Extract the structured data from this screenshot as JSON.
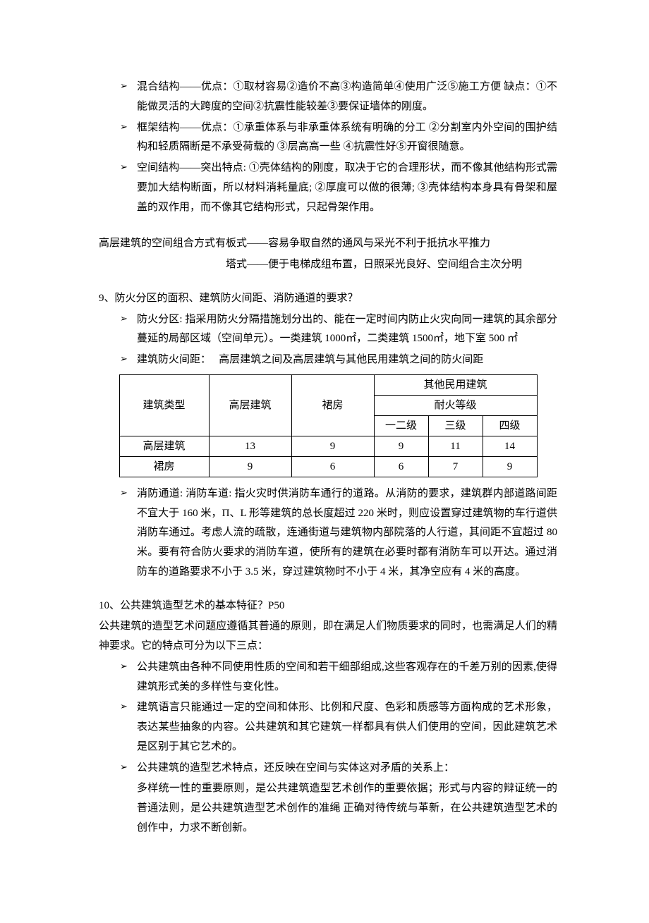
{
  "bullets_top": [
    "混合结构——优点：①取材容易②造价不高③构造简单④使用广泛⑤施工方便 缺点：①不能做灵活的大跨度的空间②抗震性能较差③要保证墙体的刚度。",
    "框架结构——优点：①承重体系与非承重体系统有明确的分工 ②分割室内外空间的围护结构和轻质隔断是不承受荷载的 ③层高高一些 ④抗震性好⑤开窗很随意。",
    "空间结构——突出特点: ①壳体结构的刚度，取决于它的合理形状，而不像其他结构形式需要加大结构断面，所以材料消耗量底; ②厚度可以做的很薄; ③壳体结构本身具有骨架和屋盖的双作用，而不像其它结构形式，只起骨架作用。"
  ],
  "highrise": {
    "line1": "高层建筑的空间组合方式有板式——容易争取自然的通风与采光不利于抵抗水平推力",
    "line2": "塔式——便于电梯成组布置，日照采光良好、空间组合主次分明"
  },
  "q9": {
    "title": "9、防火分区的面积、建筑防火间距、消防通道的要求？",
    "bullet1": "防火分区: 指采用防火分隔措施划分出的、能在一定时间内防止火灾向同一建筑的其余部分蔓延的局部区域（空间单元）。一类建筑 1000㎡，二类建筑 1500㎡，地下室 500 ㎡",
    "bullet2_lead": "建筑防火间距：",
    "bullet2_rest": "高层建筑之间及高层建筑与其他民用建筑之间的防火间距",
    "bullet3": "消防通道: 消防车道: 指火灾时供消防车通行的道路。从消防的要求，建筑群内部道路间距不宜大于 160 米，Π、L 形等建筑的总长度超过 220 米时，则应设置穿过建筑物的车行道供消防车通过。考虑人流的疏散，连通街道与建筑物内部院落的人行道，其间距不宜超过 80 米。要有符合防火要求的消防车道，使所有的建筑在必要时都有消防车可以开达。通过消防车的道路要求不小于 3.5 米，穿过建筑物时不小于 4 米，其净空应有 4 米的高度。"
  },
  "table": {
    "header_group": "其他民用建筑",
    "header_sub": "耐火等级",
    "col_type": "建筑类型",
    "col_high": "高层建筑",
    "col_skirt": "裙房",
    "col_l12": "一二级",
    "col_l3": "三级",
    "col_l4": "四级",
    "rows": [
      {
        "type": "高层建筑",
        "high": "13",
        "skirt": "9",
        "l12": "9",
        "l3": "11",
        "l4": "14"
      },
      {
        "type": "裙房",
        "high": "9",
        "skirt": "6",
        "l12": "6",
        "l3": "7",
        "l4": "9"
      }
    ]
  },
  "q10": {
    "title": "10、公共建筑造型艺术的基本特征？P50",
    "intro": "公共建筑的造型艺术问题应遵循其普通的原则，即在满足人们物质要求的同时，也需满足人们的精神要求。它的特点可分为以下三点：",
    "b1": "公共建筑由各种不同使用性质的空间和若干细部组成,这些客观存在的千差万别的因素,使得建筑形式美的多样性与变化性。",
    "b2": " 建筑语言只能通过一定的空间和体形、比例和尺度、色彩和质感等方面构成的艺术形象，表达某些抽象的内容。公共建筑和其它建筑一样都具有供人们使用的空间，因此建筑艺术是区别于其它艺术的。",
    "b3_lead": "公共建筑的造型艺术特点，还反映在空间与实体这对矛盾的关系上：",
    "b3_body": "多样统一性的重要原则，是公共建筑造型艺术创作的重要依据；形式与内容的辩证统一的普通法则，是公共建筑造型艺术创作的准绳 正确对待传统与革新，在公共建筑造型艺术的创作中，力求不断创新。"
  }
}
